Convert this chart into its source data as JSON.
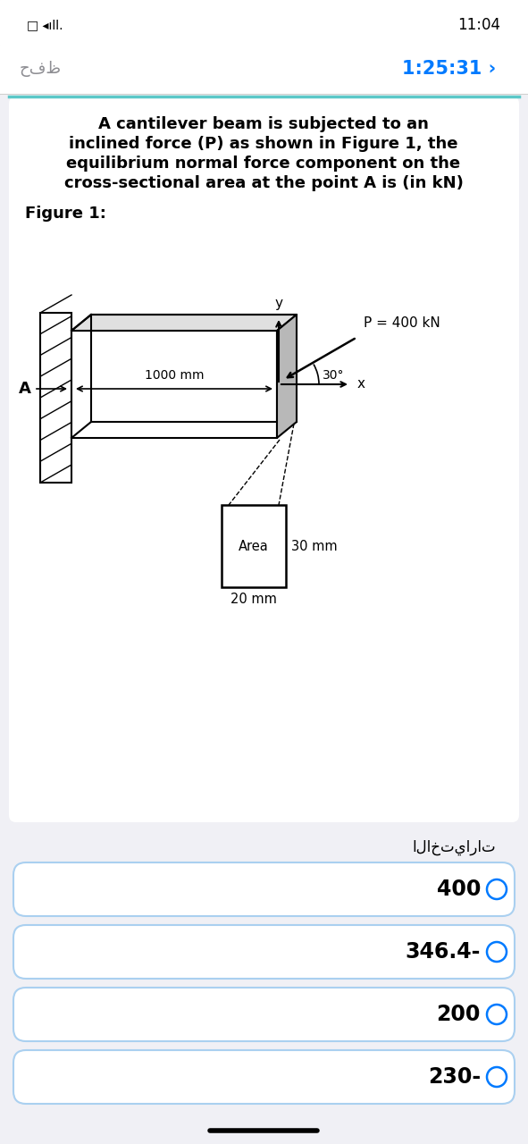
{
  "bg_color": "#f0f0f5",
  "white_color": "#ffffff",
  "black_color": "#000000",
  "blue_color": "#007aff",
  "gray_color": "#8e8e93",
  "teal_color": "#5bc8c8",
  "status_time": "11:04",
  "nav_timer": "1:25:31 ›",
  "nav_save": "حفظ",
  "question_text_lines": [
    "A cantilever beam is subjected to an",
    "inclined force (P) as shown in Figure 1, the",
    "equilibrium normal force component on the",
    "cross-sectional area at the point A is (in kN)"
  ],
  "figure_label": "Figure 1:",
  "p_label": "P = 400 kN",
  "angle_label": "30°",
  "dist_label": "1000 mm",
  "point_a": "A",
  "axis_x": "x",
  "axis_y": "y",
  "area_label": "Area",
  "dim_30": "30 mm",
  "dim_20": "20 mm",
  "choices_header": "الاختيارات",
  "choices": [
    "400",
    "346.4-",
    "200",
    "230-"
  ]
}
